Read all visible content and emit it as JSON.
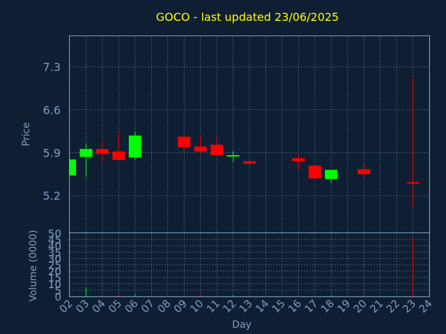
{
  "chart_data": {
    "type": "candlestick",
    "title": "GOCO - last updated 23/06/2025",
    "xlabel": "Day",
    "ylabel_price": "Price",
    "ylabel_volume": "Volume (0000)",
    "x_ticks": [
      "02",
      "03",
      "04",
      "05",
      "06",
      "07",
      "08",
      "09",
      "10",
      "11",
      "12",
      "13",
      "14",
      "15",
      "16",
      "17",
      "18",
      "19",
      "20",
      "21",
      "22",
      "23",
      "24"
    ],
    "price_yticks": [
      "5.2",
      "5.9",
      "6.6",
      "7.3"
    ],
    "price_ylim": [
      4.6,
      7.8
    ],
    "volume_yticks": [
      "0",
      "5",
      "10",
      "15",
      "20",
      "25",
      "30",
      "35",
      "40",
      "45",
      "50"
    ],
    "volume_ylim": [
      0,
      50
    ],
    "grid": true,
    "colors": {
      "up": "#00ff00",
      "down": "#ff0000",
      "background": "#0f1f33",
      "plot_border": "#7f9fbf",
      "title": "#ffff00",
      "text": "#7f9fbf"
    },
    "candles": [
      {
        "day": "02",
        "open": 5.53,
        "high": 5.8,
        "low": 5.53,
        "close": 5.79
      },
      {
        "day": "03",
        "open": 5.83,
        "high": 6.05,
        "low": 5.5,
        "close": 5.96
      },
      {
        "day": "04",
        "open": 5.96,
        "high": 6.08,
        "low": 5.75,
        "close": 5.88
      },
      {
        "day": "05",
        "open": 5.92,
        "high": 6.25,
        "low": 5.8,
        "close": 5.78
      },
      {
        "day": "06",
        "open": 5.82,
        "high": 6.25,
        "low": 5.78,
        "close": 6.18
      },
      {
        "day": "09",
        "open": 6.16,
        "high": 6.17,
        "low": 5.93,
        "close": 5.99
      },
      {
        "day": "10",
        "open": 6.0,
        "high": 6.17,
        "low": 5.9,
        "close": 5.92
      },
      {
        "day": "11",
        "open": 6.03,
        "high": 6.17,
        "low": 5.85,
        "close": 5.86
      },
      {
        "day": "12",
        "open": 5.84,
        "high": 5.93,
        "low": 5.74,
        "close": 5.86
      },
      {
        "day": "13",
        "open": 5.76,
        "high": 5.8,
        "low": 5.68,
        "close": 5.72
      },
      {
        "day": "16",
        "open": 5.81,
        "high": 5.87,
        "low": 5.63,
        "close": 5.76
      },
      {
        "day": "17",
        "open": 5.69,
        "high": 5.7,
        "low": 5.48,
        "close": 5.48
      },
      {
        "day": "18",
        "open": 5.47,
        "high": 5.62,
        "low": 5.4,
        "close": 5.62
      },
      {
        "day": "20",
        "open": 5.63,
        "high": 5.73,
        "low": 5.5,
        "close": 5.55
      },
      {
        "day": "23",
        "open": 5.42,
        "high": 7.12,
        "low": 5.01,
        "close": 5.41
      }
    ],
    "volume": [
      {
        "day": "03",
        "value": 7,
        "dir": "up"
      },
      {
        "day": "04",
        "value": 1,
        "dir": "down"
      },
      {
        "day": "05",
        "value": 2,
        "dir": "down"
      },
      {
        "day": "06",
        "value": 2,
        "dir": "up"
      },
      {
        "day": "09",
        "value": 1,
        "dir": "down"
      },
      {
        "day": "10",
        "value": 2,
        "dir": "down"
      },
      {
        "day": "11",
        "value": 1,
        "dir": "down"
      },
      {
        "day": "12",
        "value": 1,
        "dir": "up"
      },
      {
        "day": "13",
        "value": 1,
        "dir": "down"
      },
      {
        "day": "16",
        "value": 1,
        "dir": "down"
      },
      {
        "day": "17",
        "value": 1,
        "dir": "down"
      },
      {
        "day": "18",
        "value": 1,
        "dir": "up"
      },
      {
        "day": "20",
        "value": 3,
        "dir": "down"
      },
      {
        "day": "23",
        "value": 47,
        "dir": "down"
      }
    ]
  }
}
